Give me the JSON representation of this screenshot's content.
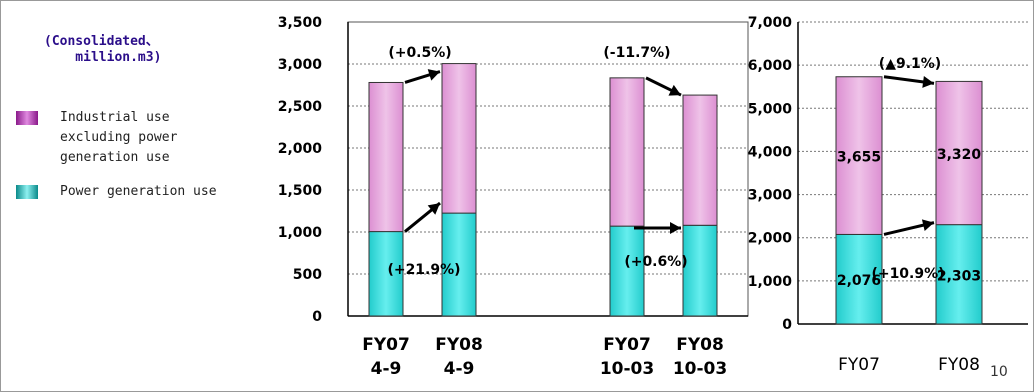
{
  "legend": {
    "unit": "(Consolidated、\n    million.m3)",
    "items": [
      {
        "label": "Industrial use\nexcluding power\ngeneration use",
        "color": "#d98ad9"
      },
      {
        "label": "Power generation use",
        "color": "#33e0e0"
      }
    ]
  },
  "page_number": "10",
  "colors": {
    "industrial": "#e3a0db",
    "power": "#33dddd",
    "industrial_dark": "#9b2f91",
    "power_dark": "#0a8a8a"
  },
  "chart_data": [
    {
      "type": "bar",
      "stacked": true,
      "categories": [
        "FY07\n4-9",
        "FY08\n4-9",
        "FY07\n10-03",
        "FY08\n10-03"
      ],
      "series": [
        {
          "name": "Power generation use",
          "values": [
            1005,
            1225,
            1070,
            1080
          ]
        },
        {
          "name": "Industrial use excluding power generation use",
          "values": [
            1775,
            1780,
            1765,
            1550
          ]
        }
      ],
      "ylim": [
        0,
        3500
      ],
      "yticks": [
        "0",
        "500",
        "1,000",
        "1,500",
        "2,000",
        "2,500",
        "3,000",
        "3,500"
      ],
      "grid": true,
      "annotations": [
        "(+0.5%)",
        "(+21.9%)",
        "(-11.7%)",
        "(+0.6%)"
      ]
    },
    {
      "type": "bar",
      "stacked": true,
      "categories": [
        "FY07",
        "FY08"
      ],
      "series": [
        {
          "name": "Power generation use",
          "values": [
            2076,
            2303
          ],
          "labels": [
            "2,076",
            "2,303"
          ]
        },
        {
          "name": "Industrial use excluding power generation use",
          "values": [
            3655,
            3320
          ],
          "labels": [
            "3,655",
            "3,320"
          ]
        }
      ],
      "ylim": [
        0,
        7000
      ],
      "yticks": [
        "0",
        "1,000",
        "2,000",
        "3,000",
        "4,000",
        "5,000",
        "6,000",
        "7,000"
      ],
      "grid": true,
      "annotations": [
        "(▲9.1%)",
        "(+10.9%)"
      ]
    }
  ]
}
